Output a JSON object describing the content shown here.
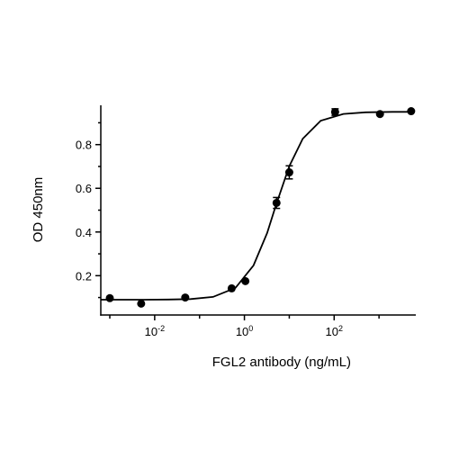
{
  "chart_data": {
    "type": "scatter",
    "x_label": "FGL2 antibody (ng/mL)",
    "y_label": "OD 450nm",
    "log_x": true,
    "xlim": [
      0.00063,
      6600
    ],
    "ylim": [
      0.02,
      0.98
    ],
    "xticks": [
      {
        "value": 0.01,
        "label": "10",
        "exponent": "-2"
      },
      {
        "value": 1,
        "label": "10",
        "exponent": "0"
      },
      {
        "value": 100,
        "label": "10",
        "exponent": "2"
      }
    ],
    "xminor_ticks": [
      0.001,
      0.1,
      10,
      1000
    ],
    "yticks": [
      0.2,
      0.4,
      0.6,
      0.8
    ],
    "yminor_ticks": [
      0.1,
      0.3,
      0.5,
      0.7,
      0.9
    ],
    "color": "#000000",
    "series": [
      {
        "name": "data",
        "x": [
          0.001,
          0.005,
          0.048,
          0.52,
          1.05,
          5.2,
          10,
          105,
          1050,
          5200
        ],
        "values": [
          0.097,
          0.072,
          0.1,
          0.142,
          0.175,
          0.533,
          0.673,
          0.949,
          0.94,
          0.953
        ],
        "errors": [
          null,
          null,
          null,
          null,
          null,
          0.025,
          0.03,
          0.015,
          null,
          null
        ]
      },
      {
        "name": "fit",
        "x": [
          0.00063,
          0.002,
          0.0063,
          0.02,
          0.063,
          0.2,
          0.63,
          1.6,
          3.2,
          5,
          10,
          20,
          50,
          160,
          500,
          2000,
          6300
        ],
        "values": [
          0.09,
          0.09,
          0.09,
          0.0907,
          0.093,
          0.103,
          0.144,
          0.247,
          0.395,
          0.52,
          0.701,
          0.827,
          0.909,
          0.9405,
          0.948,
          0.95,
          0.95
        ]
      }
    ]
  }
}
